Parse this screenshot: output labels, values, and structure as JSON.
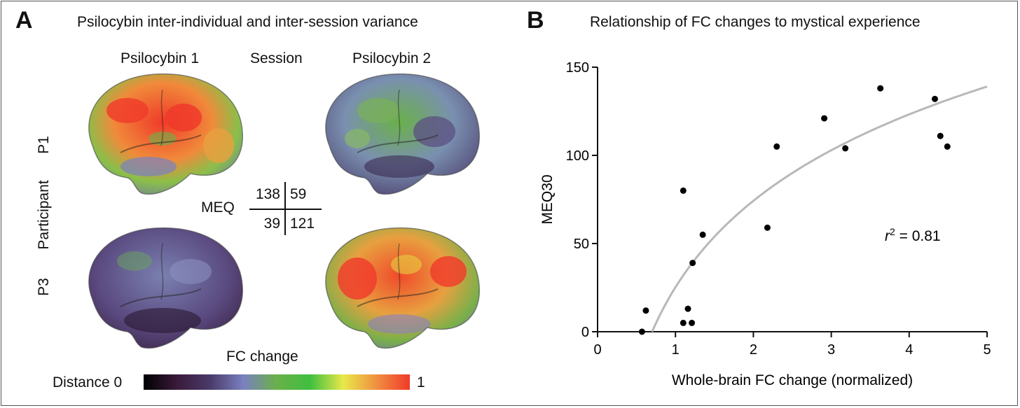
{
  "panel_a": {
    "letter": "A",
    "title": "Psilocybin inter-individual and inter-session variance",
    "col_left": "Psilocybin 1",
    "col_mid": "Session",
    "col_right": "Psilocybin 2",
    "row_axis": "Participant",
    "row_top": "P1",
    "row_bottom": "P3",
    "meq_label": "MEQ",
    "meq": {
      "p1_s1": "138",
      "p1_s2": "59",
      "p3_s1": "39",
      "p3_s2": "121"
    },
    "colorbar_title": "FC change",
    "colorbar_left": "Distance 0",
    "colorbar_right": "1",
    "colorbar_colors": [
      "#000000",
      "#3a1a3a",
      "#4a3a6a",
      "#7a80c0",
      "#6ab04a",
      "#3fbf3f",
      "#e8e84a",
      "#f09040",
      "#f03a2a"
    ]
  },
  "panel_b": {
    "letter": "B",
    "title": "Relationship of FC changes to mystical experience",
    "annotation_r": "r",
    "annotation_sup": "2",
    "annotation_val": " = 0.81"
  },
  "chart_data": {
    "type": "scatter",
    "xlabel": "Whole-brain FC change (normalized)",
    "ylabel": "MEQ30",
    "xlim": [
      0,
      5
    ],
    "ylim": [
      0,
      150
    ],
    "xticks": [
      0,
      1,
      2,
      3,
      4,
      5
    ],
    "yticks": [
      0,
      50,
      100,
      150
    ],
    "points": [
      [
        0.57,
        0
      ],
      [
        0.62,
        12
      ],
      [
        1.1,
        5
      ],
      [
        1.16,
        13
      ],
      [
        1.21,
        5
      ],
      [
        1.22,
        39
      ],
      [
        1.35,
        55
      ],
      [
        1.1,
        80
      ],
      [
        2.18,
        59
      ],
      [
        2.3,
        105
      ],
      [
        2.91,
        121
      ],
      [
        3.18,
        104
      ],
      [
        3.63,
        138
      ],
      [
        4.33,
        132
      ],
      [
        4.4,
        111
      ],
      [
        4.49,
        105
      ]
    ],
    "fit": {
      "type": "logarithmic",
      "color": "#b8b8b8",
      "zero_crossing_x": 0.7,
      "y_at_x5": 139
    },
    "grid": false
  }
}
